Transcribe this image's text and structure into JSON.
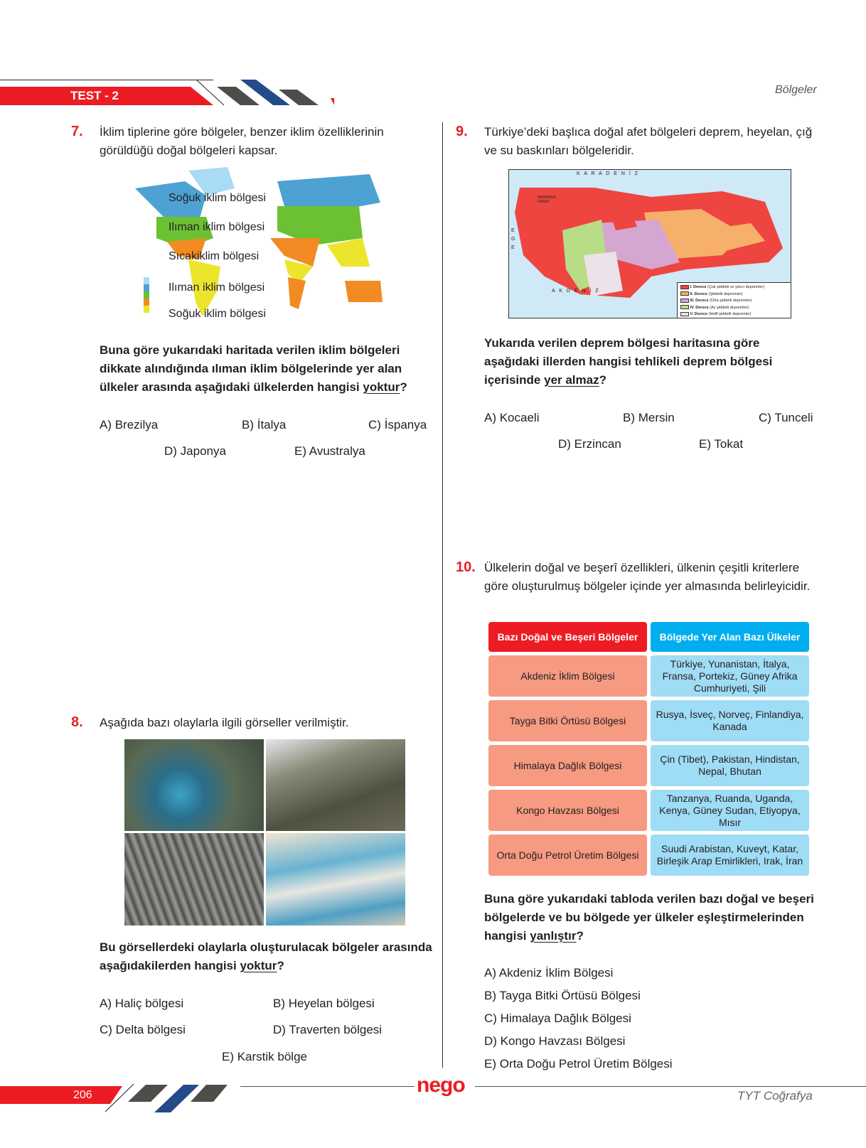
{
  "header": {
    "test_label": "TEST - 2",
    "section": "Bölgeler"
  },
  "footer": {
    "page": "206",
    "book": "TYT Coğrafya",
    "logo": "nego"
  },
  "q7": {
    "num": "7.",
    "text": "İklim tiplerine göre bölgeler, benzer iklim özelliklerinin görüldüğü doğal bölgeleri kapsar.",
    "map_labels": [
      "Soğuk iklim bölgesi",
      "Ilıman iklim bölgesi",
      "Sıcakiklim bölgesi",
      "Ilıman iklim bölgesi",
      "Soğuk iklim bölgesi"
    ],
    "question_pre": "Buna göre yukarıdaki haritada verilen iklim bölgeleri dikkate alındığında ılıman iklim bölgelerinde yer alan ülkeler arasında aşağıdaki ülkelerden hangisi ",
    "question_u": "yoktur",
    "question_post": "?",
    "options": [
      "A) Brezilya",
      "B) İtalya",
      "C) İspanya",
      "D) Japonya",
      "E) Avustralya"
    ]
  },
  "q8": {
    "num": "8.",
    "text": "Aşağıda bazı olaylarla ilgili görseller verilmiştir.",
    "question_pre": "Bu görsellerdeki olaylarla oluşturulacak bölgeler arasında aşağıdakilerden hangisi ",
    "question_u": "yoktur",
    "question_post": "?",
    "options": [
      "A)  Haliç bölgesi",
      "B)  Heyelan bölgesi",
      "C)  Delta bölgesi",
      "D)  Traverten bölgesi",
      "E)  Karstik bölge"
    ]
  },
  "q9": {
    "num": "9.",
    "text": "Türkiye’deki başlıca doğal afet bölgeleri deprem, heyelan, çığ ve su baskınları bölgeleridir.",
    "map": {
      "sea_north": "K A R A D E N İ Z",
      "sea_south": "A K D E N İ Z",
      "sea_west": "E G E",
      "marmara": "MARMARA DENİZİ",
      "legend": [
        {
          "label": "I. Derece",
          "desc": "(Çok şiddetli ve yıkıcı depremler)",
          "color": "#ee4540"
        },
        {
          "label": "II. Derece",
          "desc": "(Şiddetli depremler)",
          "color": "#f7b06b"
        },
        {
          "label": "III. Derece",
          "desc": "(Orta şiddetli depremler)",
          "color": "#d4a6d0"
        },
        {
          "label": "IV. Derece",
          "desc": "(Az şiddetli depremler)",
          "color": "#b9dc86"
        },
        {
          "label": "V. Derece",
          "desc": "(Hafif şiddetli depremler)",
          "color": "#ece2ea"
        }
      ]
    },
    "question_pre": "Yukarıda verilen deprem bölgesi haritasına göre aşağıdaki illerden hangisi tehlikeli deprem bölgesi içerisinde ",
    "question_u": "yer almaz",
    "question_post": "?",
    "options": [
      "A) Kocaeli",
      "B) Mersin",
      "C) Tunceli",
      "D) Erzincan",
      "E) Tokat"
    ]
  },
  "q10": {
    "num": "10.",
    "text": "Ülkelerin doğal ve beşerî özellikleri, ülkenin çeşitli kriterlere göre oluşturulmuş bölgeler içinde yer almasında belirleyicidir.",
    "table": {
      "headers": [
        "Bazı Doğal ve Beşeri Bölgeler",
        "Bölgede Yer Alan Bazı Ülkeler"
      ],
      "rows": [
        [
          "Akdeniz İklim Bölgesi",
          "Türkiye, Yunanistan, İtalya, Fransa, Portekiz, Güney Afrika Cumhuriyeti, Şili"
        ],
        [
          "Tayga Bitki Örtüsü Bölgesi",
          "Rusya, İsveç, Norveç, Finlandiya, Kanada"
        ],
        [
          "Himalaya Dağlık Bölgesi",
          "Çin (Tibet), Pakistan, Hindistan, Nepal, Bhutan"
        ],
        [
          "Kongo Havzası Bölgesi",
          "Tanzanya, Ruanda, Uganda, Kenya, Güney Sudan, Etiyopya, Mısır"
        ],
        [
          "Orta Doğu Petrol Üretim Bölgesi",
          "Suudi Arabistan, Kuveyt, Katar, Birleşik Arap Emirlikleri, Irak, İran"
        ]
      ]
    },
    "question_pre": "Buna göre yukarıdaki tabloda verilen bazı doğal ve beşeri bölgelerde ve bu bölgede yer ülkeler eşleştirmelerinden hangisi ",
    "question_u": "yanlıştır",
    "question_post": "?",
    "options": [
      "A)  Akdeniz İklim Bölgesi",
      "B)  Tayga Bitki Örtüsü Bölgesi",
      "C)  Himalaya Dağlık Bölgesi",
      "D)  Kongo Havzası Bölgesi",
      "E)  Orta Doğu Petrol Üretim Bölgesi"
    ]
  },
  "colors": {
    "accent_red": "#ed1c24",
    "navy": "#254a8a",
    "gray": "#4d4e4a",
    "header_blue": "#00aeef"
  }
}
